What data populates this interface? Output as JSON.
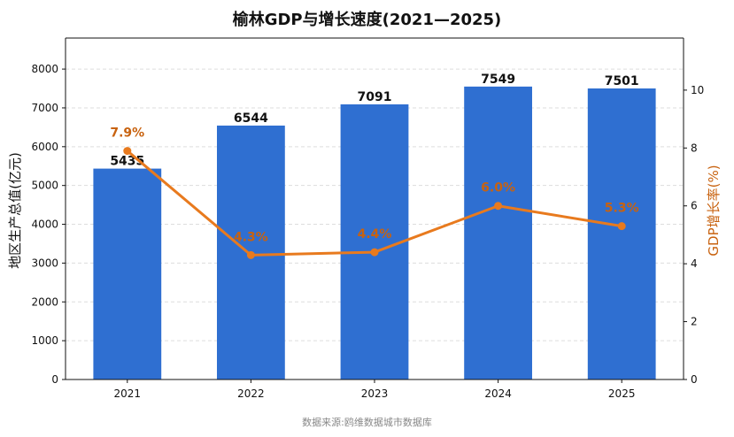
{
  "chart_data": {
    "type": "bar",
    "title": "榆林GDP与增长速度(2021—2025)",
    "categories": [
      "2021",
      "2022",
      "2023",
      "2024",
      "2025"
    ],
    "series": [
      {
        "name": "",
        "type": "bar",
        "axis": "left",
        "values": [
          5435,
          6544,
          7091,
          7549,
          7501
        ],
        "color": "#2f6fd1"
      },
      {
        "name": "",
        "type": "line",
        "axis": "right",
        "values": [
          7.9,
          4.3,
          4.4,
          6.0,
          5.3
        ],
        "color": "#e87a1e"
      }
    ],
    "bar_labels": [
      "5435",
      "6544",
      "7091",
      "7549",
      "7501"
    ],
    "line_labels": [
      "7.9%",
      "4.3%",
      "4.4%",
      "6.0%",
      "5.3%"
    ],
    "xlabel": "",
    "ylabel": "地区生产总值(亿元)",
    "y2label": "GDP增长率(%)",
    "ylim": [
      0,
      8800
    ],
    "y2lim": [
      0,
      11.8
    ],
    "yticks": [
      0,
      1000,
      2000,
      3000,
      4000,
      5000,
      6000,
      7000,
      8000
    ],
    "y2ticks": [
      0,
      2,
      4,
      6,
      8,
      10
    ],
    "grid": true,
    "source": "数据来源:鸥维数据城市数据库"
  }
}
